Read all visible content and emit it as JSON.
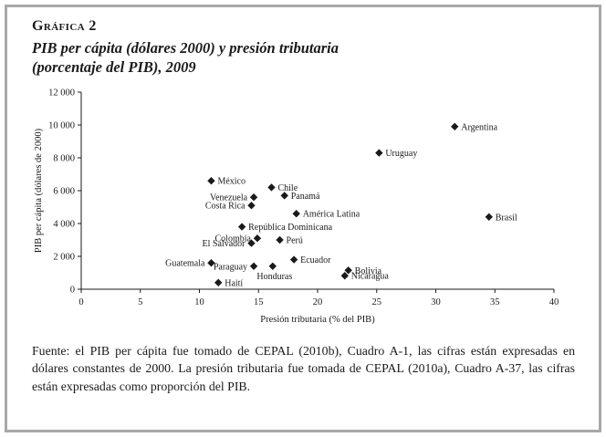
{
  "header": {
    "kicker": "Gráfica 2",
    "title_line1": "PIB per cápita (dólares 2000) y presión tributaria",
    "title_line2": "(porcentaje del PIB), 2009"
  },
  "chart_data": {
    "type": "scatter",
    "title": "PIB per cápita (dólares 2000) y presión tributaria (porcentaje del PIB), 2009",
    "xlabel": "Presión tributaria (% del PIB)",
    "ylabel": "PIB per cápita (dólares de 2000)",
    "xlim": [
      0,
      40
    ],
    "ylim": [
      0,
      12000
    ],
    "xticks": [
      0,
      5,
      10,
      15,
      20,
      25,
      30,
      35,
      40
    ],
    "yticks": [
      0,
      2000,
      4000,
      6000,
      8000,
      10000,
      12000
    ],
    "ytick_labels": [
      "0",
      "2 000",
      "4 000",
      "6 000",
      "8 000",
      "10 000",
      "12 000"
    ],
    "grid": false,
    "marker": "diamond",
    "marker_color": "#1a1a1a",
    "points": [
      {
        "name": "Argentina",
        "x": 31.6,
        "y": 9900,
        "label_side": "right"
      },
      {
        "name": "Uruguay",
        "x": 25.2,
        "y": 8300,
        "label_side": "right"
      },
      {
        "name": "México",
        "x": 11.0,
        "y": 6600,
        "label_side": "right"
      },
      {
        "name": "Chile",
        "x": 16.1,
        "y": 6200,
        "label_side": "right"
      },
      {
        "name": "Panamá",
        "x": 17.2,
        "y": 5700,
        "label_side": "right"
      },
      {
        "name": "Venezuela",
        "x": 14.6,
        "y": 5600,
        "label_side": "left"
      },
      {
        "name": "Costa Rica",
        "x": 14.4,
        "y": 5100,
        "label_side": "left"
      },
      {
        "name": "América Latina",
        "x": 18.2,
        "y": 4600,
        "label_side": "right"
      },
      {
        "name": "Brasil",
        "x": 34.5,
        "y": 4400,
        "label_side": "right"
      },
      {
        "name": "República Dominicana",
        "x": 13.6,
        "y": 3800,
        "label_side": "right"
      },
      {
        "name": "Colombia",
        "x": 14.9,
        "y": 3100,
        "label_side": "left"
      },
      {
        "name": "Perú",
        "x": 16.8,
        "y": 3000,
        "label_side": "right"
      },
      {
        "name": "El Salvador",
        "x": 14.4,
        "y": 2800,
        "label_side": "left"
      },
      {
        "name": "Ecuador",
        "x": 18.0,
        "y": 1800,
        "label_side": "right"
      },
      {
        "name": "Guatemala",
        "x": 11.0,
        "y": 1600,
        "label_side": "left"
      },
      {
        "name": "Paraguay",
        "x": 14.6,
        "y": 1400,
        "label_side": "left"
      },
      {
        "name": "Honduras",
        "x": 16.2,
        "y": 1400,
        "label_side": "below"
      },
      {
        "name": "Bolivia",
        "x": 22.6,
        "y": 1150,
        "label_side": "right"
      },
      {
        "name": "Nicaragua",
        "x": 22.3,
        "y": 820,
        "label_side": "right"
      },
      {
        "name": "Haití",
        "x": 11.6,
        "y": 400,
        "label_side": "right"
      }
    ]
  },
  "source": {
    "text": "Fuente: el PIB per cápita fue tomado de CEPAL (2010b), Cuadro A-1, las cifras están expresadas en dólares constantes de 2000. La presión tributaria fue tomada de CEPAL (2010a), Cuadro A-37, las cifras están expresadas como proporción del PIB."
  }
}
